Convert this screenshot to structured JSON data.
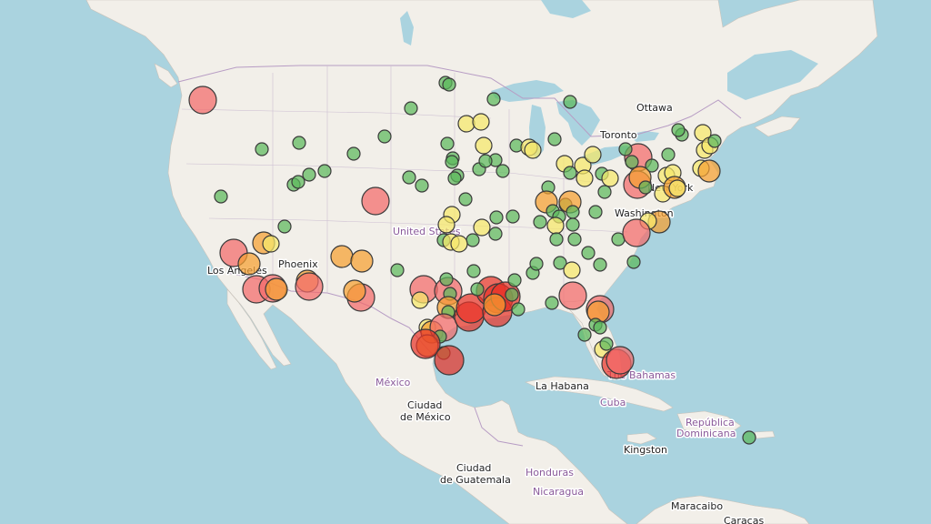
{
  "labels": {
    "ottawa": "Ottawa",
    "toronto": "Toronto",
    "new_york": "New York",
    "washington": "Washington",
    "united_states": "United States",
    "phoenix": "Phoenix",
    "los_angeles": "Los Angeles",
    "mexico": "México",
    "ciudad_de_mexico_1": "Ciudad",
    "ciudad_de_mexico_2": "de México",
    "la_habana": "La Habana",
    "cuba": "Cuba",
    "bahamas": "The Bahamas",
    "republica_1": "República",
    "republica_2": "Dominicana",
    "kingston": "Kingston",
    "honduras": "Honduras",
    "ciudad_guatemala_1": "Ciudad",
    "ciudad_guatemala_2": "de Guatemala",
    "nicaragua": "Nicaragua",
    "maracaibo": "Maracaibo",
    "caracas": "Caracas"
  },
  "colors": {
    "water": "#aad3df",
    "land": "#f2efe9",
    "green": "#5cb85c",
    "yellow": "#f5e76a",
    "orange": "#f5a030",
    "light_red": "#f26a6a",
    "red": "#e8352a"
  }
}
